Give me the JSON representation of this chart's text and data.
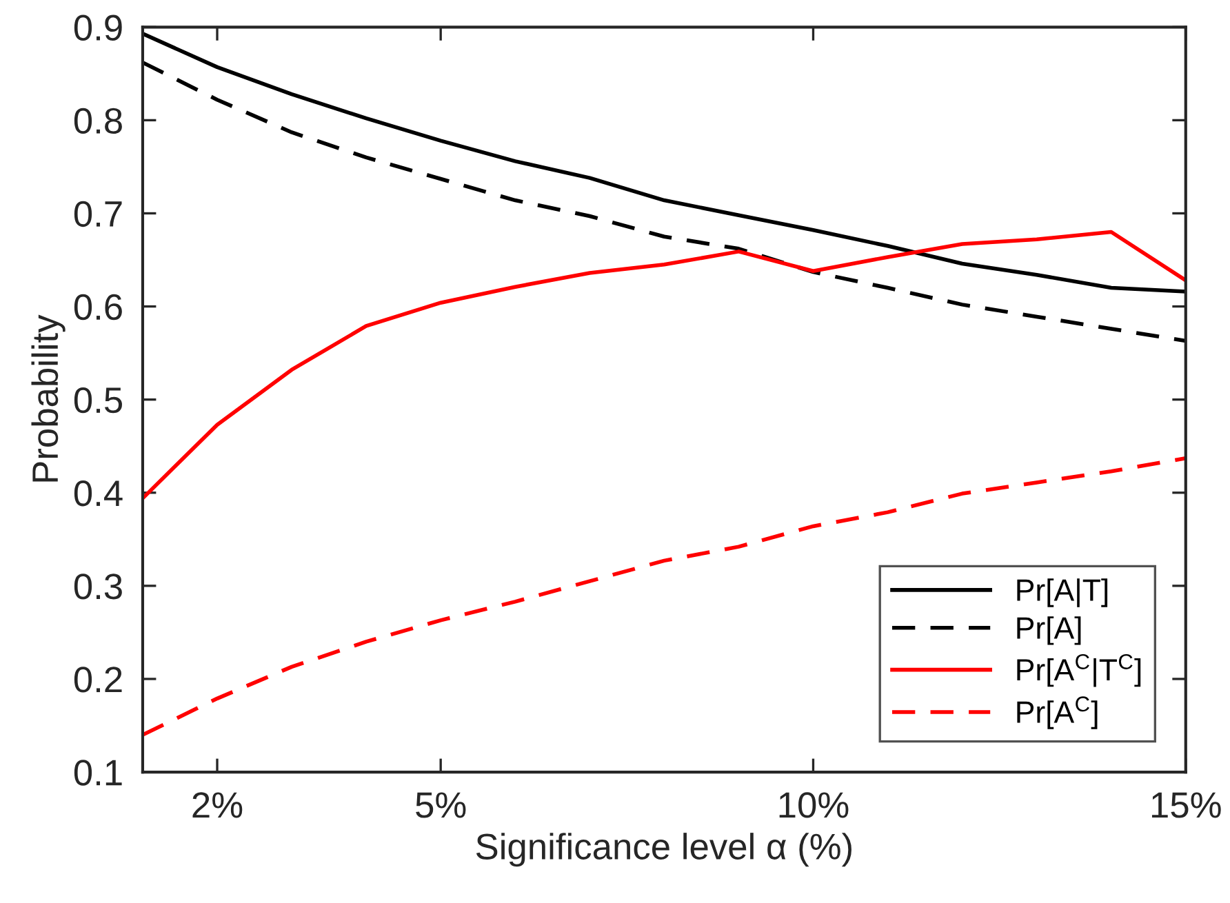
{
  "chart_data": {
    "type": "line",
    "xlabel": "Significance level α (%)",
    "ylabel": "Probability",
    "x": [
      1,
      2,
      3,
      4,
      5,
      6,
      7,
      8,
      9,
      10,
      11,
      12,
      13,
      14,
      15
    ],
    "xlim": [
      1,
      15
    ],
    "xticks": [
      {
        "value": 2,
        "label": "2%"
      },
      {
        "value": 5,
        "label": "5%"
      },
      {
        "value": 10,
        "label": "10%"
      },
      {
        "value": 15,
        "label": "15%"
      }
    ],
    "ylim": [
      0.1,
      0.9
    ],
    "yticks": [
      0.1,
      0.2,
      0.3,
      0.4,
      0.5,
      0.6,
      0.7,
      0.8,
      0.9
    ],
    "grid": false,
    "legend": "bottom right",
    "marker": "none",
    "series": [
      {
        "name": "Pr[A|T]",
        "color": "#000000",
        "line_style": "solid",
        "values": [
          0.893,
          0.857,
          0.828,
          0.802,
          0.778,
          0.756,
          0.738,
          0.714,
          0.698,
          0.682,
          0.665,
          0.646,
          0.634,
          0.62,
          0.616
        ]
      },
      {
        "name": "Pr[A]",
        "color": "#000000",
        "line_style": "dashed",
        "values": [
          0.862,
          0.822,
          0.787,
          0.76,
          0.737,
          0.714,
          0.697,
          0.675,
          0.662,
          0.637,
          0.62,
          0.602,
          0.589,
          0.576,
          0.563
        ]
      },
      {
        "name": "Pr[A$^{C}$|T$^{C}$]",
        "color": "#ff0000",
        "line_style": "solid",
        "values": [
          0.394,
          0.473,
          0.532,
          0.579,
          0.604,
          0.621,
          0.636,
          0.645,
          0.659,
          0.638,
          0.653,
          0.667,
          0.672,
          0.68,
          0.628
        ]
      },
      {
        "name": "Pr[A$^{C}$]",
        "color": "#ff0000",
        "line_style": "dashed",
        "values": [
          0.14,
          0.179,
          0.213,
          0.24,
          0.263,
          0.283,
          0.305,
          0.327,
          0.342,
          0.364,
          0.379,
          0.399,
          0.411,
          0.423,
          0.437
        ]
      }
    ]
  }
}
